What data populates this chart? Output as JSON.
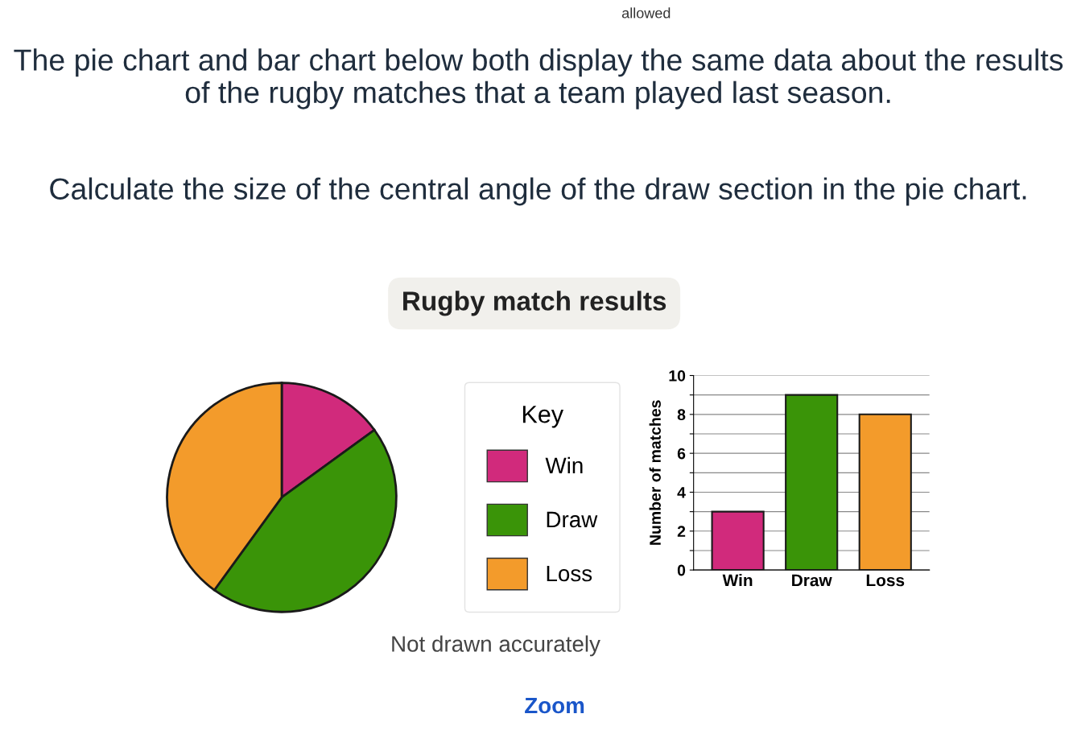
{
  "chart_data": [
    {
      "type": "pie",
      "title": "Rugby match results",
      "legend_title": "Key",
      "legend": "right",
      "categories": [
        "Win",
        "Draw",
        "Loss"
      ],
      "values": [
        15,
        45,
        40
      ],
      "colors": [
        "#d12a7c",
        "#3a9408",
        "#f39b2b"
      ],
      "annotations": [
        "allowed",
        "The pie chart and bar chart below both display the same data about the results of the rugby matches that a team played last season.",
        "Calculate the size of the central angle of the draw section in the pie chart.",
        "Not drawn accurately",
        "Zoom"
      ]
    },
    {
      "type": "bar",
      "ylabel": "Number of matches",
      "categories": [
        "Win",
        "Draw",
        "Loss"
      ],
      "values": [
        3,
        9,
        8
      ],
      "colors": [
        "#d12a7c",
        "#3a9408",
        "#f39b2b"
      ],
      "ylim": [
        0,
        10
      ],
      "yticks": [
        0,
        {
          "value": 1,
          "label": null
        },
        2,
        {
          "value": 3,
          "label": null
        },
        4,
        {
          "value": 5,
          "label": null
        },
        6,
        {
          "value": 7,
          "label": null
        },
        8,
        {
          "value": 9,
          "label": null
        },
        10
      ],
      "grid": "y"
    }
  ]
}
